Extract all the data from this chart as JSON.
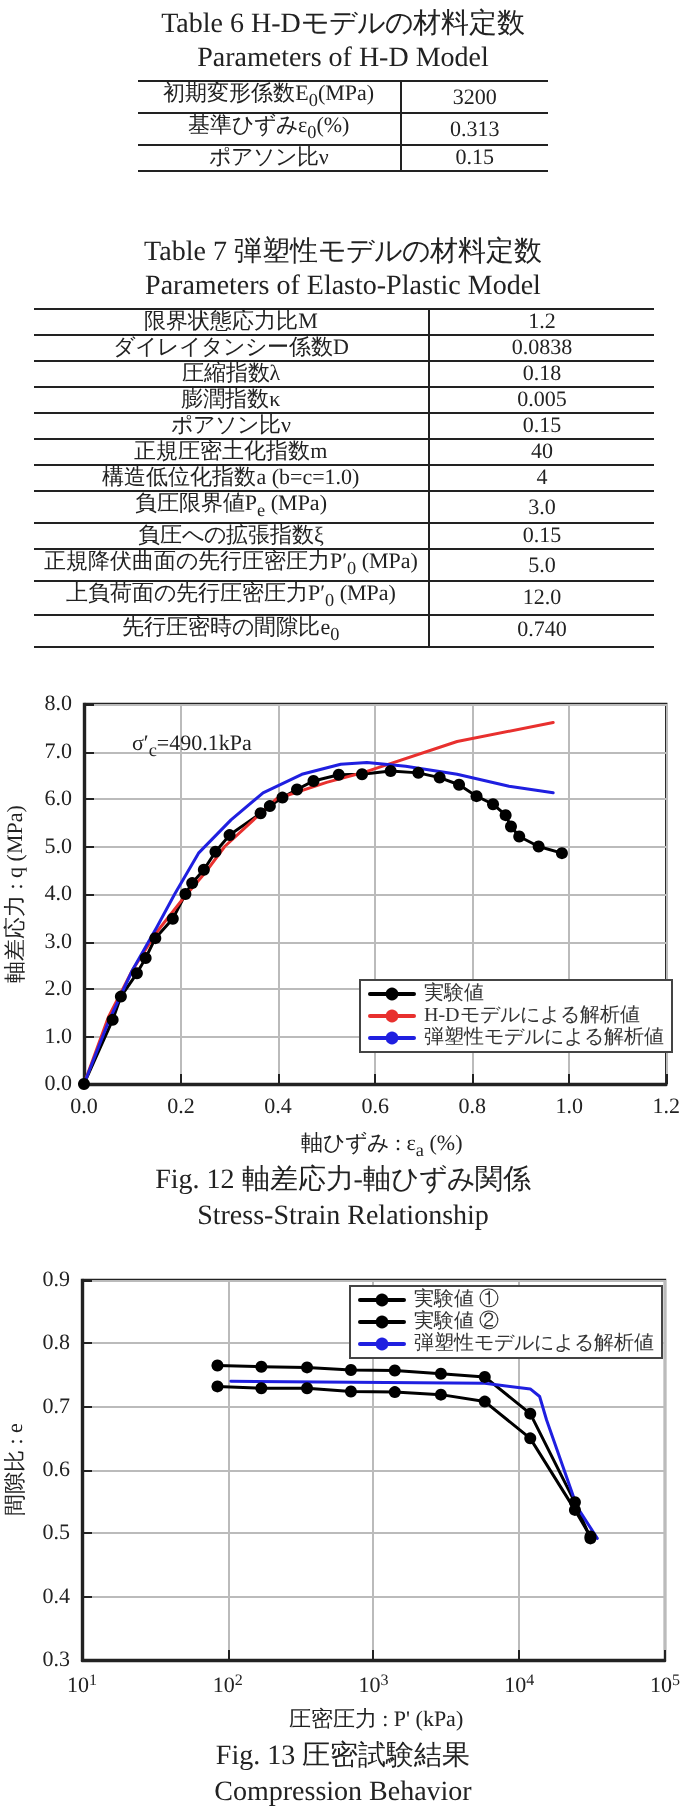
{
  "chart_data": [
    {
      "type": "other",
      "title": "Table 6 H-Dモデルの材料定数",
      "subtitle": "Parameters of H-D Model",
      "categories": [
        "初期変形係数E$_{0}$(MPa)",
        "基準ひずみε$_{0}$(%)",
        "ポアソン比ν"
      ],
      "value_labels": [
        "3200",
        "0.313",
        "0.15"
      ]
    },
    {
      "type": "other",
      "title": "Table 7 弾塑性モデルの材料定数",
      "subtitle": "Parameters of Elasto-Plastic Model",
      "categories": [
        "限界状態応力比M",
        "ダイレイタンシー係数D",
        "圧縮指数λ",
        "膨潤指数κ",
        "ポアソン比ν",
        "正規圧密土化指数m",
        "構造低位化指数a (b=c=1.0)",
        "負圧限界値P$_{e}$ (MPa)",
        "負圧への拡張指数ξ",
        "正規降伏曲面の先行圧密圧力P′$_{0}$ (MPa)",
        "上負荷面の先行圧密圧力P′$_{0}$ (MPa)",
        "先行圧密時の間隙比e$_{0}$"
      ],
      "value_labels": [
        "1.2",
        "0.0838",
        "0.18",
        "0.005",
        "0.15",
        "40",
        "4",
        "3.0",
        "0.15",
        "5.0",
        "12.0",
        "0.740"
      ]
    },
    {
      "type": "line",
      "title": "Fig. 12 軸差応力-軸ひずみ関係",
      "subtitle": "Stress-Strain Relationship",
      "xlabel": "軸ひずみ : ε$_{a}$ (%)",
      "ylabel": "軸差応力 : q (MPa)",
      "annotations": [
        "σ′$_{c}$=490.1kPa"
      ],
      "xlim": [
        0,
        1.2
      ],
      "ylim": [
        0,
        8
      ],
      "xticks": [
        {
          "value": 0,
          "label": "0.0"
        },
        0.2,
        0.4,
        0.6,
        0.8,
        {
          "value": 1,
          "label": "1.0"
        },
        1.2
      ],
      "yticks": [
        {
          "value": 0,
          "label": "0.0"
        },
        {
          "value": 1,
          "label": "1.0"
        },
        {
          "value": 2,
          "label": "2.0"
        },
        {
          "value": 3,
          "label": "3.0"
        },
        {
          "value": 4,
          "label": "4.0"
        },
        {
          "value": 5,
          "label": "5.0"
        },
        {
          "value": 6,
          "label": "6.0"
        },
        {
          "value": 7,
          "label": "7.0"
        },
        {
          "value": 8,
          "label": "8.0"
        }
      ],
      "grid": true,
      "legend": "bottom right",
      "line_style": "solid",
      "series": [
        {
          "name": "実験値",
          "color": "#000000",
          "marker": "circle",
          "x": [
            0,
            0.059,
            0.076,
            0.109,
            0.127,
            0.147,
            0.183,
            0.209,
            0.223,
            0.247,
            0.271,
            0.3,
            0.364,
            0.383,
            0.409,
            0.439,
            0.473,
            0.525,
            0.573,
            0.632,
            0.689,
            0.733,
            0.773,
            0.809,
            0.843,
            0.869,
            0.88,
            0.897,
            0.937,
            0.985
          ],
          "values": [
            0,
            1.35,
            1.84,
            2.33,
            2.65,
            3.07,
            3.48,
            4.0,
            4.23,
            4.51,
            4.89,
            5.24,
            5.7,
            5.85,
            6.03,
            6.2,
            6.38,
            6.51,
            6.52,
            6.59,
            6.55,
            6.45,
            6.3,
            6.06,
            5.89,
            5.66,
            5.42,
            5.21,
            5.0,
            4.86
          ]
        },
        {
          "name": "H-Dモデルによる解析値",
          "color": "#e8302e",
          "marker": "none",
          "x": [
            0,
            0.05,
            0.1,
            0.15,
            0.2,
            0.25,
            0.29,
            0.396,
            0.5,
            0.583,
            0.636,
            0.769,
            0.967
          ],
          "values": [
            0,
            1.4,
            2.4,
            3.2,
            3.85,
            4.45,
            5.0,
            6.0,
            6.35,
            6.58,
            6.76,
            7.21,
            7.61
          ]
        },
        {
          "name": "弾塑性モデルによる解析値",
          "color": "#1f1fe0",
          "marker": "none",
          "x": [
            0,
            0.05,
            0.1,
            0.15,
            0.187,
            0.236,
            0.303,
            0.369,
            0.449,
            0.529,
            0.583,
            0.663,
            0.769,
            0.876,
            0.967
          ],
          "values": [
            0,
            1.3,
            2.4,
            3.3,
            4.0,
            4.86,
            5.56,
            6.13,
            6.52,
            6.73,
            6.77,
            6.69,
            6.52,
            6.27,
            6.13
          ]
        }
      ]
    },
    {
      "type": "line",
      "title": "Fig. 13 圧密試験結果",
      "subtitle": "Compression Behavior",
      "xlabel": "圧密圧力 : P' (kPa)",
      "ylabel": "間隙比 : e",
      "log": "x",
      "xlim": [
        10,
        100000
      ],
      "ylim": [
        0.3,
        0.9
      ],
      "xticks": [
        {
          "value": 10,
          "label": "10$^{1}$"
        },
        {
          "value": 100,
          "label": "10$^{2}$"
        },
        {
          "value": 1000,
          "label": "10$^{3}$"
        },
        {
          "value": 10000,
          "label": "10$^{4}$"
        },
        {
          "value": 100000,
          "label": "10$^{5}$"
        }
      ],
      "yticks": [
        0.3,
        0.4,
        0.5,
        0.6,
        0.7,
        0.8,
        0.9
      ],
      "grid": true,
      "legend": "top right",
      "line_style": "solid",
      "series": [
        {
          "name": "実験値 ①",
          "color": "#000000",
          "marker": "circle",
          "x": [
            85,
            170,
            350,
            700,
            1400,
            2900,
            5800,
            11900,
            24100,
            30800
          ],
          "values": [
            0.732,
            0.729,
            0.729,
            0.724,
            0.723,
            0.719,
            0.708,
            0.65,
            0.537,
            0.495
          ]
        },
        {
          "name": "実験値 ②",
          "color": "#000000",
          "marker": "circle",
          "x": [
            85,
            170,
            350,
            700,
            1400,
            2900,
            5800,
            11900,
            24100,
            30800
          ],
          "values": [
            0.765,
            0.763,
            0.762,
            0.758,
            0.757,
            0.752,
            0.747,
            0.689,
            0.549,
            0.492
          ]
        },
        {
          "name": "弾塑性モデルによる解析値",
          "color": "#1f1fe0",
          "marker": "none",
          "x": [
            105,
            5800,
            11900,
            13800,
            15400,
            24900,
            34300
          ],
          "values": [
            0.74,
            0.737,
            0.728,
            0.716,
            0.679,
            0.542,
            0.492
          ]
        }
      ]
    }
  ]
}
